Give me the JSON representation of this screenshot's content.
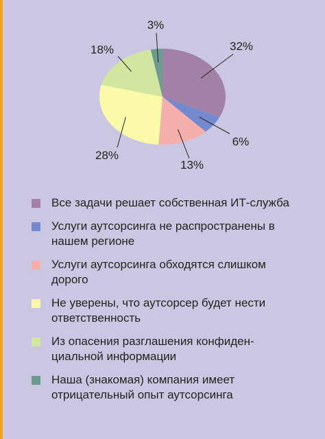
{
  "chart_data": {
    "type": "pie",
    "slices": [
      {
        "label": "Все задачи решает собственная ИТ-служба",
        "value": 32,
        "value_label": "32%",
        "color": "#a380a6"
      },
      {
        "label": "Услуги аутсорсинга не распространены в\nнашем регионе",
        "value": 6,
        "value_label": "6%",
        "color": "#7589ce"
      },
      {
        "label": "Услуги аутсорсинга обходятся слишком\nдорого",
        "value": 13,
        "value_label": "13%",
        "color": "#f5b0ad"
      },
      {
        "label": "Не уверены, что аутсорсер будет нести\nответственность",
        "value": 28,
        "value_label": "28%",
        "color": "#fafaa8"
      },
      {
        "label": "Из опасения разглашения конфиден-\nциальной информации",
        "value": 18,
        "value_label": "18%",
        "color": "#d3e6a0"
      },
      {
        "label": "Наша (знакомая) компания имеет\nотрицательный опыт аутсорсинга",
        "value": 3,
        "value_label": "3%",
        "color": "#6d9b8e"
      }
    ]
  }
}
